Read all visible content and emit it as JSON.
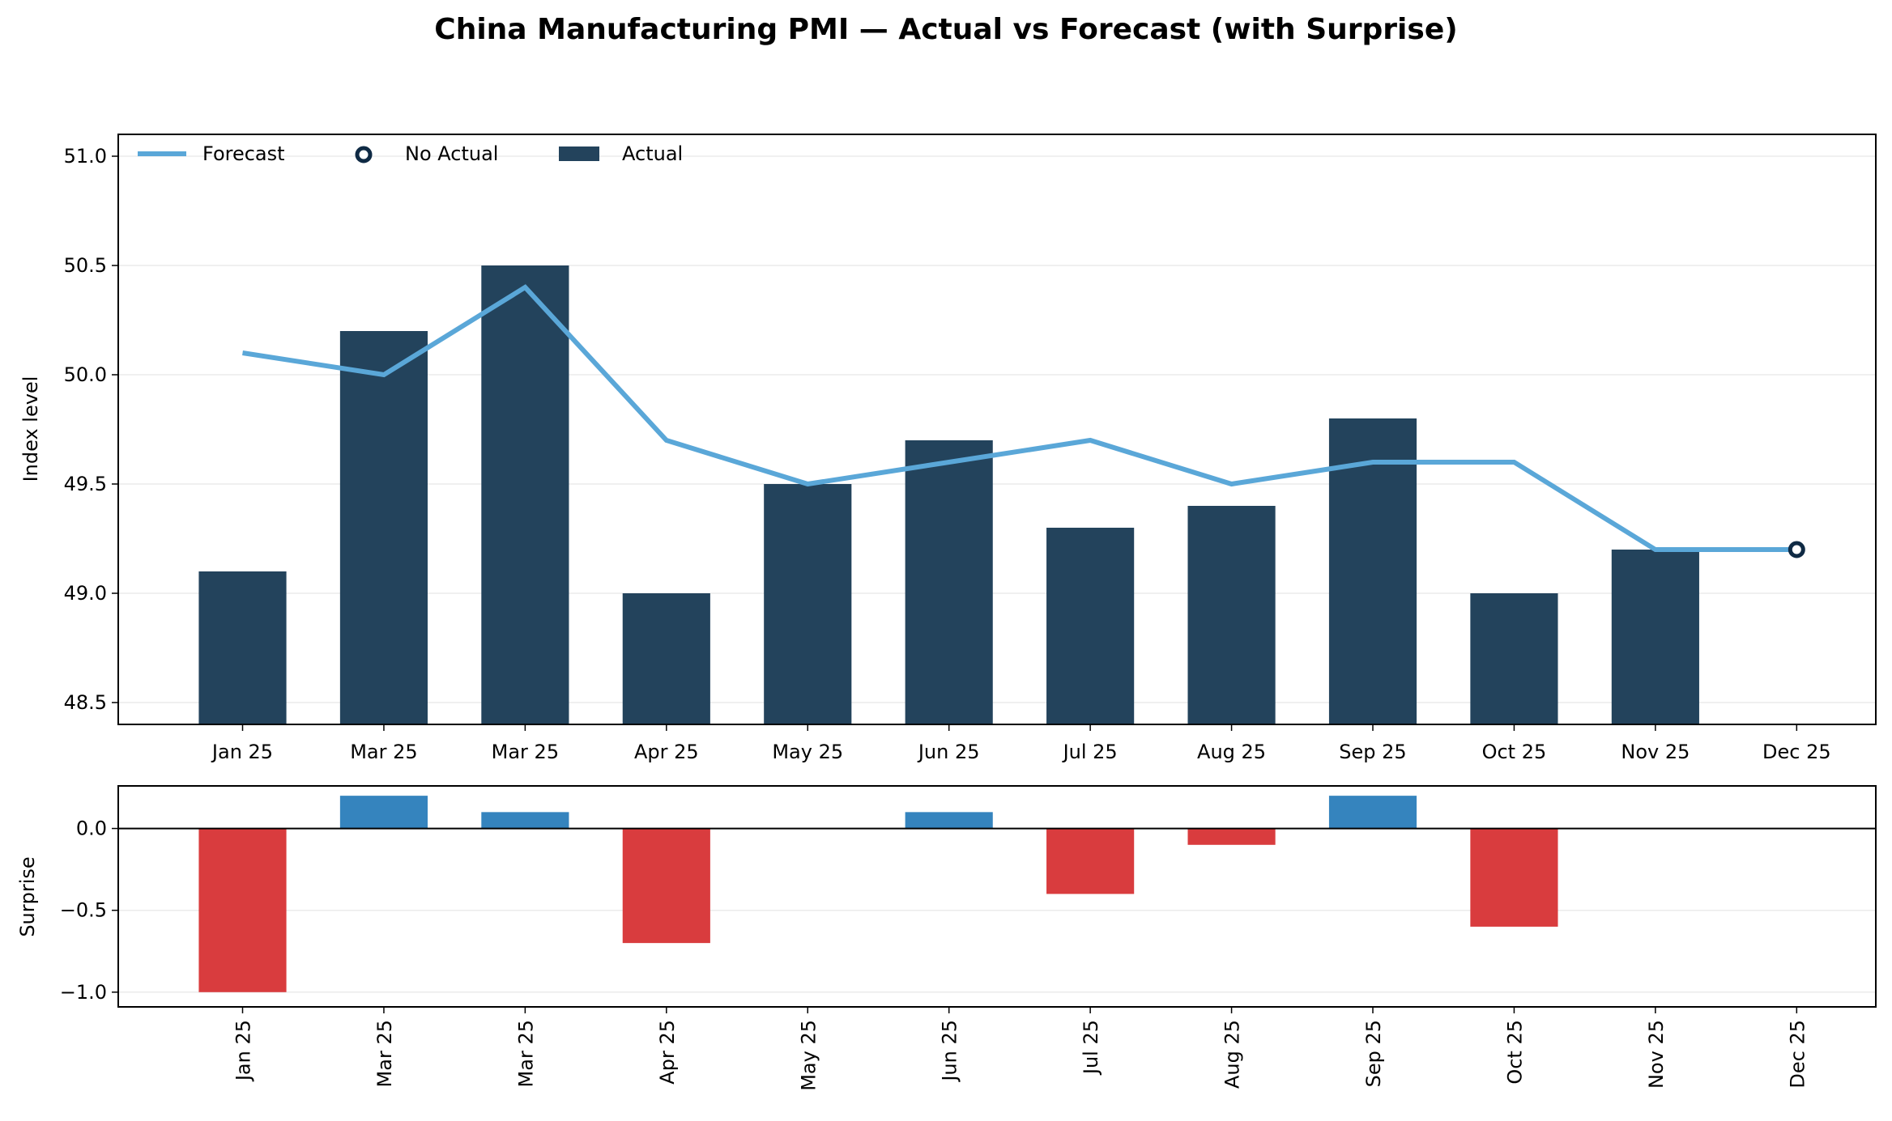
{
  "chart_data": [
    {
      "type": "bar+line",
      "title": "China Manufacturing PMI — Actual vs Forecast (with Surprise)",
      "xlabel": "",
      "ylabel": "Index level",
      "categories": [
        "Jan 25",
        "Mar 25",
        "Mar 25",
        "Apr 25",
        "May 25",
        "Jun 25",
        "Jul 25",
        "Aug 25",
        "Sep 25",
        "Oct 25",
        "Nov 25",
        "Dec 25"
      ],
      "ylim": [
        48.4,
        51.1
      ],
      "yticks": [
        "48.5",
        "49.0",
        "49.5",
        "50.0",
        "50.5",
        "51.0"
      ],
      "grid": true,
      "legend_placement": "top-left",
      "series": [
        {
          "name": "Actual",
          "kind": "bar",
          "color": "#23435c",
          "values": [
            49.1,
            50.2,
            50.5,
            49.0,
            49.5,
            49.7,
            49.3,
            49.4,
            49.8,
            49.0,
            49.2,
            null
          ]
        },
        {
          "name": "Forecast",
          "kind": "line",
          "color": "#5aa7d8",
          "values": [
            50.1,
            50.0,
            50.4,
            49.7,
            49.5,
            49.6,
            49.7,
            49.5,
            49.6,
            49.6,
            49.2,
            49.2
          ]
        },
        {
          "name": "No Actual",
          "kind": "marker",
          "color": "#0f2a44",
          "values": [
            null,
            null,
            null,
            null,
            null,
            null,
            null,
            null,
            null,
            null,
            null,
            49.2
          ]
        }
      ],
      "legend": [
        "Forecast",
        "No Actual",
        "Actual"
      ]
    },
    {
      "type": "bar",
      "xlabel": "",
      "ylabel": "Surprise",
      "categories": [
        "Jan 25",
        "Mar 25",
        "Mar 25",
        "Apr 25",
        "May 25",
        "Jun 25",
        "Jul 25",
        "Aug 25",
        "Sep 25",
        "Oct 25",
        "Nov 25",
        "Dec 25"
      ],
      "ylim": [
        -1.09,
        0.26
      ],
      "yticks": [
        "−1.0",
        "−0.5",
        "0.0"
      ],
      "grid": true,
      "positive_color": "#3584be",
      "negative_color": "#d93c3e",
      "values": [
        -1.0,
        0.2,
        0.1,
        -0.7,
        0.0,
        0.1,
        -0.4,
        -0.1,
        0.2,
        -0.6,
        0.0,
        null
      ]
    }
  ]
}
